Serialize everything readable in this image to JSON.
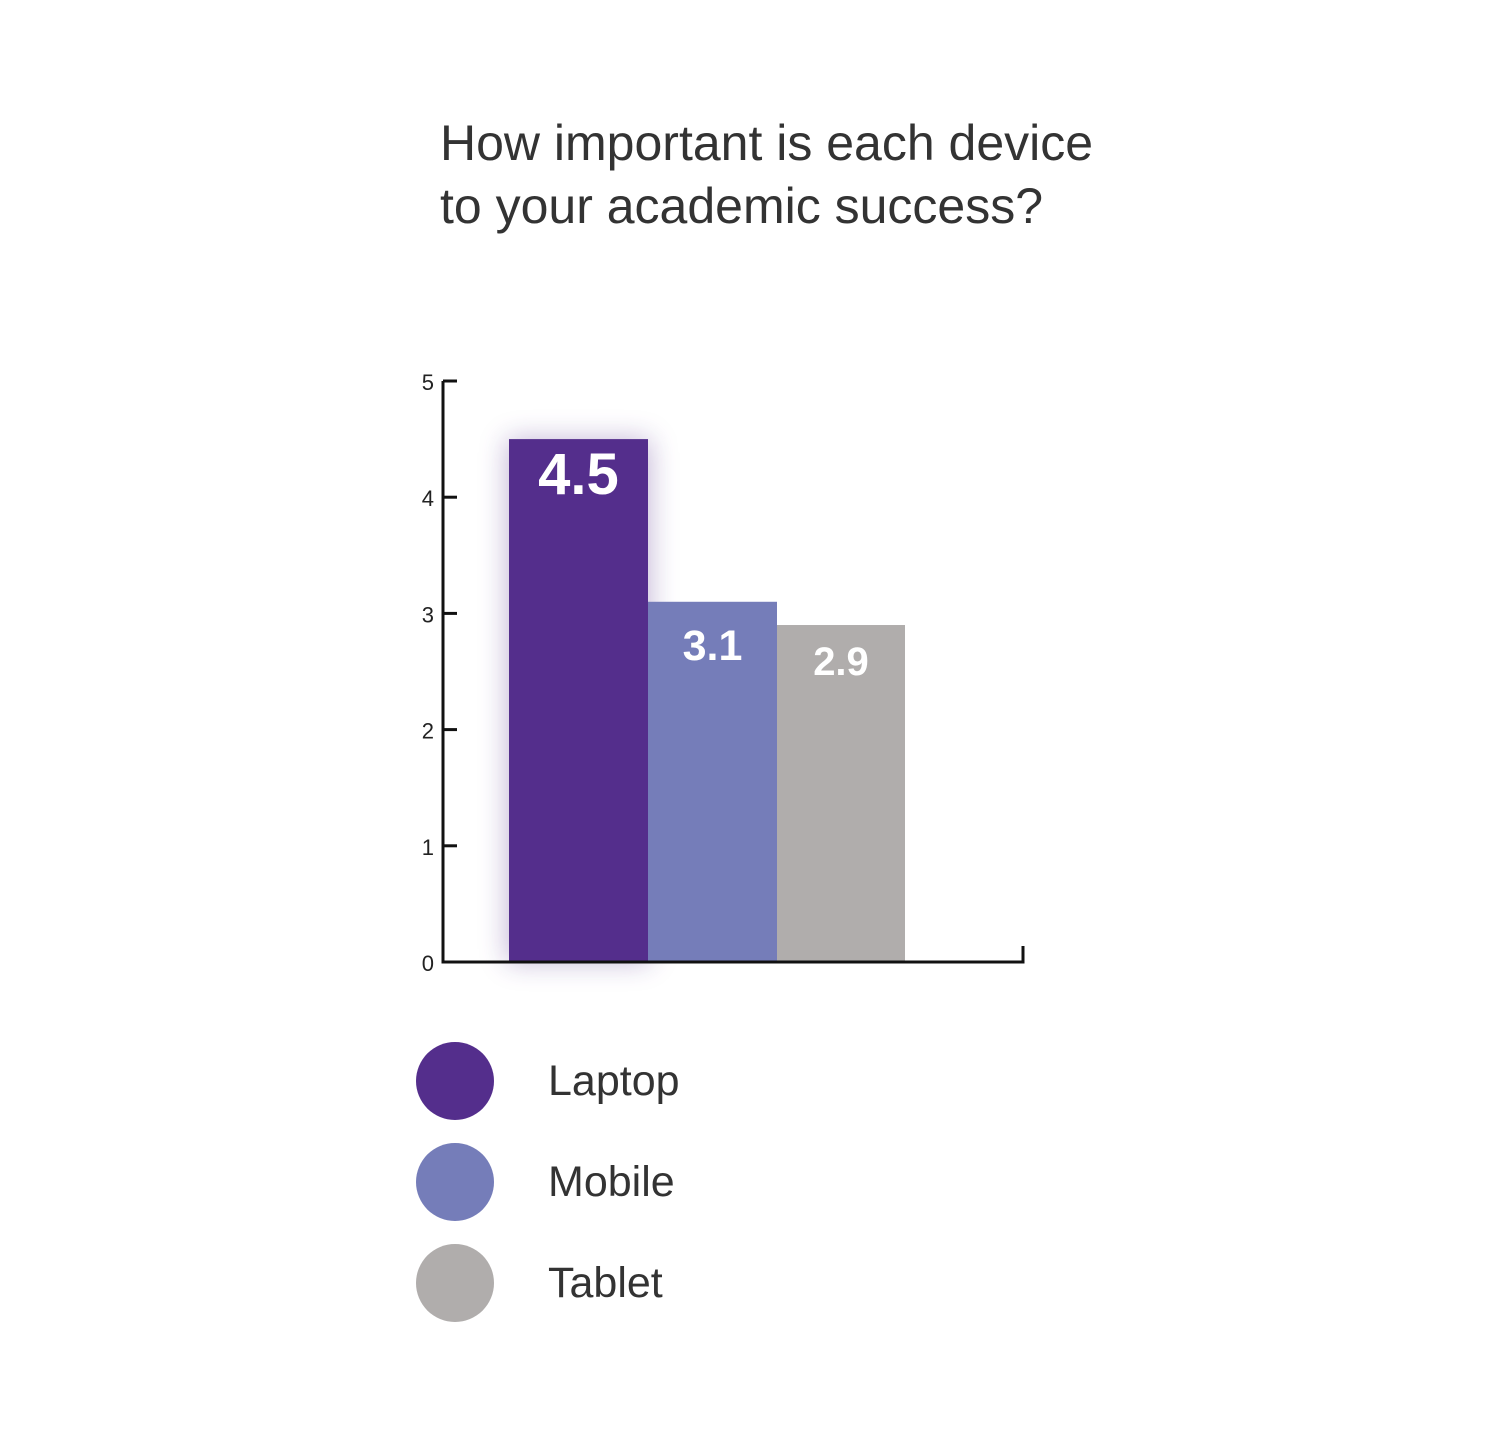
{
  "chart_data": {
    "type": "bar",
    "title_lines": [
      "How important is each device",
      "to your academic success?"
    ],
    "categories": [
      "Laptop",
      "Mobile",
      "Tablet"
    ],
    "values": [
      4.5,
      3.1,
      2.9
    ],
    "value_labels": [
      "4.5",
      "3.1",
      "2.9"
    ],
    "colors": [
      "#542e8c",
      "#757db9",
      "#b0adac"
    ],
    "ylim": [
      0,
      5
    ],
    "yticks": [
      "0",
      "1",
      "2",
      "3",
      "4",
      "5"
    ],
    "grid": false,
    "legend_position": "bottom",
    "legend": [
      {
        "label": "Laptop",
        "color": "#542e8c"
      },
      {
        "label": "Mobile",
        "color": "#757db9"
      },
      {
        "label": "Tablet",
        "color": "#b0adac"
      }
    ]
  }
}
